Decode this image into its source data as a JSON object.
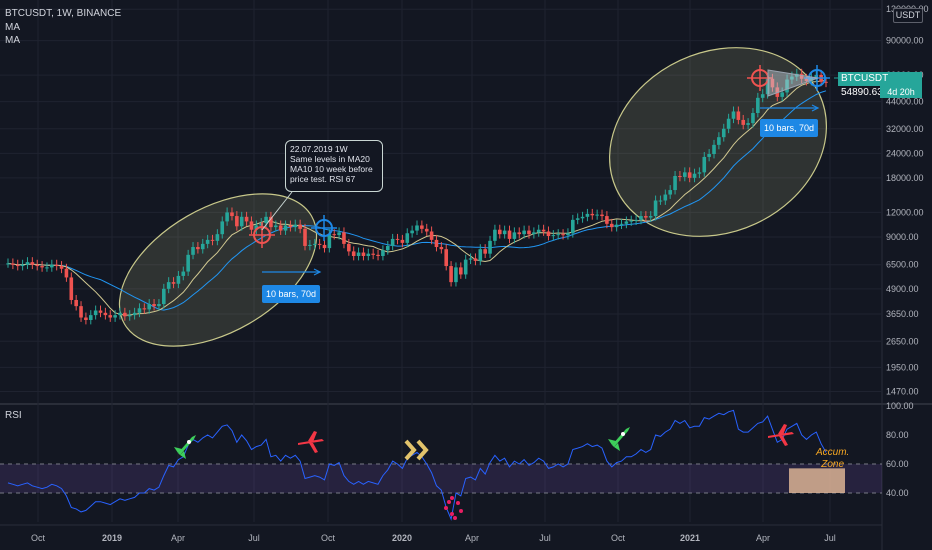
{
  "header": {
    "symbol_line": "BTCUSDT, 1W, BINANCE",
    "indicator1": "MA",
    "indicator2": "MA"
  },
  "price_axis": {
    "currency": "USDT",
    "labels": [
      "130000.00",
      "90000.00",
      "60000.00",
      "44000.00",
      "32000.00",
      "24000.00",
      "18000.00",
      "12000.00",
      "9000.00",
      "6500.00",
      "4900.00",
      "3650.00",
      "2650.00",
      "1950.00",
      "1470.00"
    ]
  },
  "price_tag": {
    "label": "BTCUSDT  54890.63",
    "countdown": "4d 20h"
  },
  "annotation": {
    "text": "22.07.2019 1W\nSame levels in MA20\nMA10 10 week before\nprice test. RSI 67"
  },
  "bars_labels": {
    "first": "10 bars, 70d",
    "second": "10 bars, 70d"
  },
  "rsi": {
    "title": "RSI",
    "axis_labels": [
      "100.00",
      "80.00",
      "60.00",
      "40.00"
    ],
    "zone_label": "Accum.\nZone"
  },
  "time_axis": {
    "labels": [
      {
        "text": "Oct",
        "bold": false
      },
      {
        "text": "2019",
        "bold": true
      },
      {
        "text": "Apr",
        "bold": false
      },
      {
        "text": "Jul",
        "bold": false
      },
      {
        "text": "Oct",
        "bold": false
      },
      {
        "text": "2020",
        "bold": true
      },
      {
        "text": "Apr",
        "bold": false
      },
      {
        "text": "Jul",
        "bold": false
      },
      {
        "text": "Oct",
        "bold": false
      },
      {
        "text": "2021",
        "bold": true
      },
      {
        "text": "Apr",
        "bold": false
      },
      {
        "text": "Jul",
        "bold": false
      }
    ]
  },
  "colors": {
    "background": "#131722",
    "up": "#26a69a",
    "down": "#ef5350",
    "ma_fast": "#d1c891",
    "ma_slow": "#2196f3",
    "rsi_line": "#2962ff",
    "rsi_band": "#7e57c2",
    "ellipse": "#c8c88a",
    "accum_zone": "#f4c7a0"
  },
  "chart_data": [
    {
      "type": "candlestick",
      "title": "BTCUSDT, 1W, BINANCE",
      "scale": "log",
      "ylim": [
        1300,
        135000
      ],
      "yticks": [
        1470,
        1950,
        2650,
        3650,
        4900,
        6500,
        9000,
        12000,
        18000,
        24000,
        32000,
        44000,
        60000,
        90000,
        130000
      ],
      "x_start": "2018-09",
      "x_end": "2021-08",
      "weekly_close": [
        6600,
        6500,
        6400,
        6500,
        6700,
        6500,
        6400,
        6300,
        6300,
        6500,
        6400,
        6200,
        5600,
        4300,
        4000,
        3500,
        3400,
        3600,
        3800,
        3700,
        3600,
        3500,
        3600,
        3700,
        3550,
        3600,
        3700,
        3900,
        3850,
        4100,
        4000,
        4100,
        4900,
        5300,
        5200,
        5700,
        6000,
        7300,
        8000,
        7800,
        8300,
        8700,
        8600,
        9300,
        10800,
        12000,
        11500,
        10200,
        11400,
        10800,
        9800,
        10300,
        10600,
        11400,
        10100,
        10300,
        9700,
        10300,
        10100,
        10400,
        9900,
        8100,
        8200,
        8300,
        8200,
        7900,
        9300,
        9200,
        9500,
        8300,
        7600,
        7200,
        7500,
        7200,
        7400,
        7300,
        7200,
        7700,
        8100,
        8800,
        8700,
        8400,
        9400,
        9700,
        10300,
        9900,
        9600,
        8700,
        8000,
        7800,
        6400,
        5300,
        6300,
        5800,
        6900,
        7000,
        6800,
        7800,
        7400,
        8600,
        9800,
        9300,
        9700,
        8800,
        9500,
        9300,
        9700,
        9300,
        9500,
        9800,
        9600,
        9100,
        9200,
        9300,
        9200,
        9400,
        11000,
        11200,
        11400,
        11800,
        11600,
        11700,
        11500,
        10500,
        10100,
        10400,
        10500,
        10800,
        10900,
        11000,
        11500,
        11300,
        11500,
        13800,
        13800,
        14800,
        15600,
        18400,
        18200,
        19200,
        18000,
        18900,
        19200,
        23000,
        23800,
        26500,
        29000,
        32000,
        36000,
        39200,
        35500,
        33500,
        34200,
        38500,
        46000,
        48000,
        57500,
        52000,
        46500,
        49000,
        57000,
        59000,
        61000,
        57500,
        56000,
        58500,
        60200,
        55500,
        54890
      ],
      "ma10_slow_endpoints": {
        "2018-09": 6500,
        "2019-04": 4100,
        "2019-07": 8800,
        "2019-10": 9700,
        "2020-03": 7600,
        "2020-10": 10400,
        "2021-04": 46000
      },
      "annotations": [
        "22.07.2019 1W",
        "10 bars, 70d",
        "10 bars, 70d"
      ]
    },
    {
      "type": "line",
      "title": "RSI",
      "ylim": [
        20,
        100
      ],
      "yticks": [
        40,
        60,
        80,
        100
      ],
      "bands": [
        40,
        60
      ],
      "values": [
        47,
        46,
        45,
        46,
        47,
        45,
        44,
        43,
        44,
        46,
        45,
        43,
        38,
        30,
        29,
        27,
        28,
        31,
        34,
        34,
        33,
        32,
        34,
        36,
        35,
        36,
        37,
        40,
        40,
        43,
        42,
        44,
        52,
        59,
        58,
        63,
        65,
        73,
        77,
        75,
        78,
        80,
        78,
        82,
        86,
        87,
        83,
        75,
        80,
        76,
        70,
        72,
        73,
        77,
        65,
        66,
        62,
        66,
        64,
        66,
        62,
        50,
        51,
        52,
        51,
        49,
        60,
        59,
        61,
        52,
        48,
        46,
        48,
        46,
        48,
        47,
        46,
        52,
        56,
        62,
        60,
        57,
        64,
        66,
        68,
        65,
        60,
        54,
        45,
        42,
        30,
        22,
        40,
        38,
        50,
        51,
        49,
        57,
        53,
        61,
        66,
        62,
        64,
        58,
        62,
        60,
        63,
        59,
        61,
        64,
        62,
        57,
        58,
        60,
        58,
        60,
        70,
        71,
        72,
        74,
        72,
        73,
        71,
        62,
        58,
        61,
        62,
        65,
        65,
        67,
        70,
        68,
        70,
        80,
        79,
        82,
        84,
        90,
        88,
        90,
        85,
        86,
        86,
        92,
        91,
        93,
        95,
        94,
        96,
        97,
        84,
        82,
        82,
        85,
        88,
        89,
        93,
        84,
        75,
        77,
        84,
        86,
        88,
        80,
        77,
        80,
        82,
        74,
        68
      ]
    }
  ]
}
